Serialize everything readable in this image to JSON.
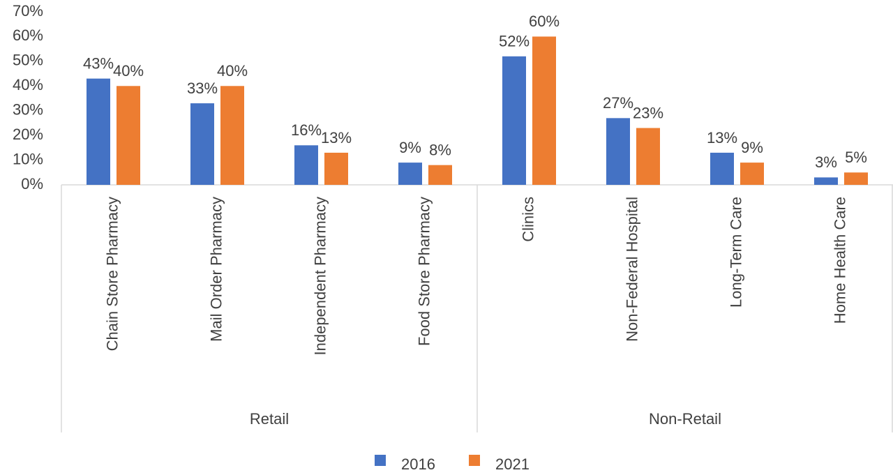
{
  "chart_data": {
    "type": "bar",
    "categories": [
      "Chain Store Pharmacy",
      "Mail Order Pharmacy",
      "Independent Pharmacy",
      "Food Store Pharmacy",
      "Clinics",
      "Non-Federal Hospital",
      "Long-Term Care",
      "Home Health Care"
    ],
    "category_groups": [
      "Retail",
      "Retail",
      "Retail",
      "Retail",
      "Non-Retail",
      "Non-Retail",
      "Non-Retail",
      "Non-Retail"
    ],
    "series": [
      {
        "name": "2016",
        "color": "#4472c4",
        "values": [
          43,
          33,
          16,
          9,
          52,
          27,
          13,
          3
        ],
        "value_labels": [
          "43%",
          "33%",
          "16%",
          "9%",
          "52%",
          "27%",
          "13%",
          "3%"
        ]
      },
      {
        "name": "2021",
        "color": "#ed7d31",
        "values": [
          40,
          40,
          13,
          8,
          60,
          23,
          9,
          5
        ],
        "value_labels": [
          "40%",
          "40%",
          "13%",
          "8%",
          "60%",
          "23%",
          "9%",
          "5%"
        ]
      }
    ],
    "ylim": [
      0,
      70
    ],
    "yticks": [
      {
        "value": 0,
        "label": "0%"
      },
      {
        "value": 10,
        "label": "10%"
      },
      {
        "value": 20,
        "label": "20%"
      },
      {
        "value": 30,
        "label": "30%"
      },
      {
        "value": 40,
        "label": "40%"
      },
      {
        "value": 50,
        "label": "50%"
      },
      {
        "value": 60,
        "label": "60%"
      },
      {
        "value": 70,
        "label": "70%"
      }
    ],
    "grid": false,
    "legend": "bottom"
  }
}
